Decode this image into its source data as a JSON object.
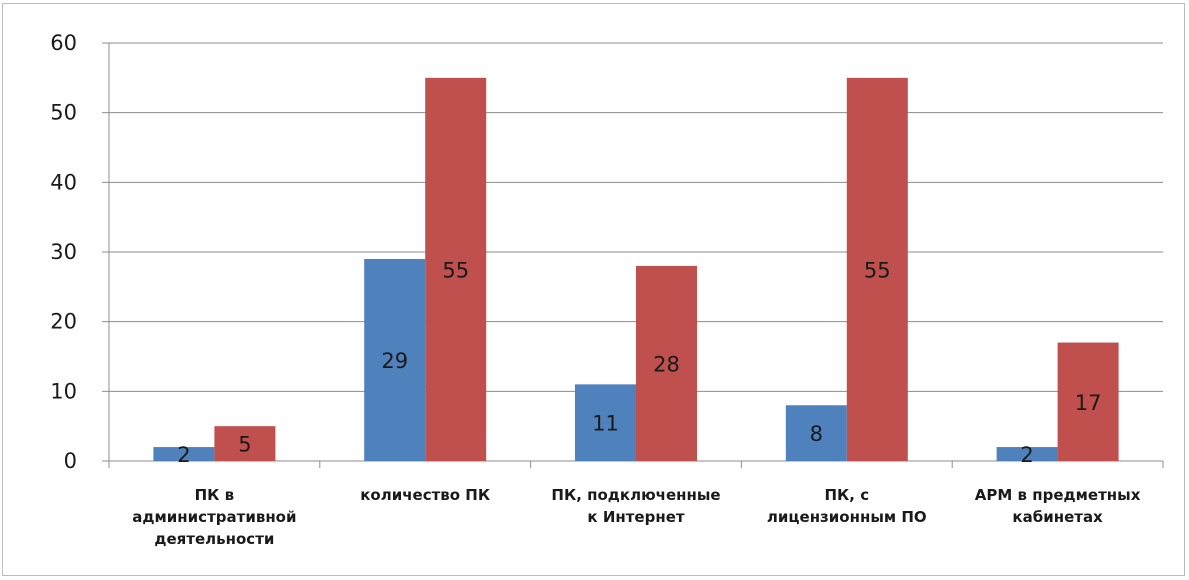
{
  "chart_data": {
    "type": "bar",
    "categories": [
      [
        "ПК в",
        "административной",
        "деятельности"
      ],
      [
        "количество ПК"
      ],
      [
        "ПК, подключенные",
        "к Интернет"
      ],
      [
        "ПК, с",
        "лицензионным ПО"
      ],
      [
        "АРМ в предметных",
        "кабинетах"
      ]
    ],
    "series": [
      {
        "values": [
          2,
          29,
          11,
          8,
          2
        ],
        "color": "#4f81bd",
        "data_labels": [
          "2",
          "29",
          "11",
          "8",
          "2"
        ]
      },
      {
        "values": [
          5,
          55,
          28,
          55,
          17
        ],
        "color": "#c0504d",
        "data_labels": [
          "5",
          "55",
          "28",
          "55",
          "17"
        ]
      }
    ],
    "ylim": [
      0,
      60
    ],
    "yticks": [
      0,
      10,
      20,
      30,
      40,
      50,
      60
    ],
    "grid": true,
    "legend": "none"
  }
}
